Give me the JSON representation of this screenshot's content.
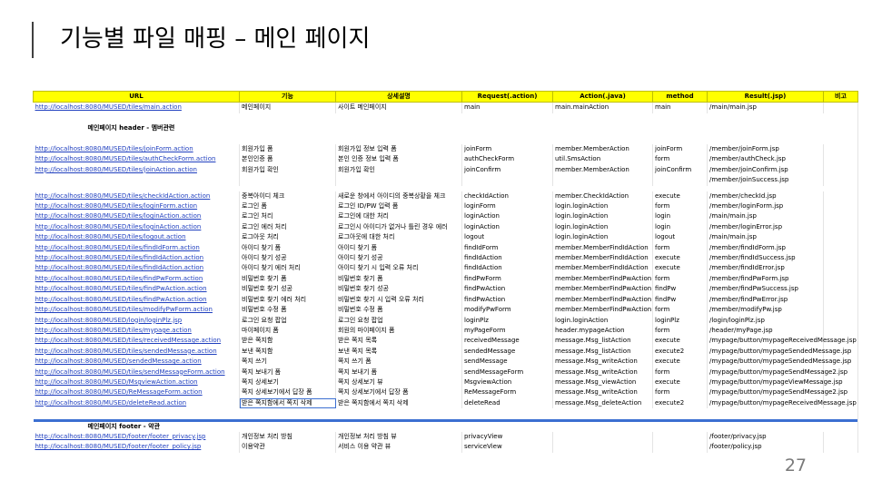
{
  "title": "기능별 파일 매핑 – 메인 페이지",
  "page_number": "27",
  "columns": [
    "URL",
    "기능",
    "상세설명",
    "Request(.action)",
    "Action(.java)",
    "method",
    "Result(.jsp)",
    "비고"
  ],
  "row_main": {
    "url": "http://localhost:8080/MUSED/tiles/main.action",
    "func": "메인페이지",
    "desc": "사이트 메인페이지",
    "req": "main",
    "act": "main.mainAction",
    "method": "main",
    "result": "/main/main.jsp"
  },
  "section_header": "메인페이지 header - 멤버관련",
  "header_rows": [
    {
      "url": "http://localhost:8080/MUSED/tiles/joinForm.action",
      "func": "회원가입 폼",
      "desc": "회원가입 정보 입력 폼",
      "req": "joinForm",
      "act": "member.MemberAction",
      "method": "joinForm",
      "result": "/member/joinForm.jsp"
    },
    {
      "url": "http://localhost:8080/MUSED/tiles/authCheckForm.action",
      "func": "본인인증 폼",
      "desc": "본인 인증 정보 입력 폼",
      "req": "authCheckForm",
      "act": "util.SmsAction",
      "method": "form",
      "result": "/member/authCheck.jsp"
    },
    {
      "url": "http://localhost:8080/MUSED/tiles/joinAction.action",
      "func": "회원가입 확인",
      "desc": "회원가입 확인",
      "req": "joinConfirm",
      "act": "member.MemberAction",
      "method": "joinConfirm",
      "result": "/member/joinConfirm.jsp"
    },
    {
      "url": "",
      "func": "",
      "desc": "",
      "req": "",
      "act": "",
      "method": "",
      "result": "/member/joinSuccess.jsp"
    },
    {
      "url": "http://localhost:8080/MUSED/tiles/checkIdAction.action",
      "func": "중복아이디 체크",
      "desc": "새로운 창에서 아이디의 중복상황을 체크",
      "req": "checkIdAction",
      "act": "member.CheckIdAction",
      "method": "execute",
      "result": "/member/checkId.jsp"
    },
    {
      "url": "http://localhost:8080/MUSED/tiles/loginForm.action",
      "func": "로그인 폼",
      "desc": "로그인 ID/PW 입력 폼",
      "req": "loginForm",
      "act": "login.loginAction",
      "method": "form",
      "result": "/member/loginForm.jsp"
    },
    {
      "url": "http://localhost:8080/MUSED/tiles/loginAction.action",
      "func": "로그인 처리",
      "desc": "로그인에 대한 처리",
      "req": "loginAction",
      "act": "login.loginAction",
      "method": "login",
      "result": "/main/main.jsp"
    },
    {
      "url": "http://localhost:8080/MUSED/tiles/loginAction.action",
      "func": "로그인 에러 처리",
      "desc": "로그인시 아이디가 없거나 틀린 경우 에러",
      "req": "loginAction",
      "act": "login.loginAction",
      "method": "login",
      "result": "/member/loginError.jsp"
    },
    {
      "url": "http://localhost:8080/MUSED/tiles/logout.action",
      "func": "로그아웃 처리",
      "desc": "로그아웃에 대한 처리",
      "req": "logout",
      "act": "login.loginAction",
      "method": "logout",
      "result": "/main/main.jsp"
    },
    {
      "url": "http://localhost:8080/MUSED/tiles/findIdForm.action",
      "func": "아이디 찾기 폼",
      "desc": "아이디 찾기 폼",
      "req": "findIdForm",
      "act": "member.MemberFindIdAction",
      "method": "form",
      "result": "/member/findIdForm.jsp"
    },
    {
      "url": "http://localhost:8080/MUSED/tiles/findIdAction.action",
      "func": "아이디 찾기 성공",
      "desc": "아이디 찾기 성공",
      "req": "findIdAction",
      "act": "member.MemberFindIdAction",
      "method": "execute",
      "result": "/member/findIdSuccess.jsp"
    },
    {
      "url": "http://localhost:8080/MUSED/tiles/findIdAction.action",
      "func": "아이디 찾기 에러 처리",
      "desc": "아이디 찾기 시 입력 오류 처리",
      "req": "findIdAction",
      "act": "member.MemberFindIdAction",
      "method": "execute",
      "result": "/member/findIdError.jsp"
    },
    {
      "url": "http://localhost:8080/MUSED/tiles/findPwForm.action",
      "func": "비밀번호 찾기 폼",
      "desc": "비밀번호 찾기 폼",
      "req": "findPwForm",
      "act": "member.MemberFindPwAction",
      "method": "form",
      "result": "/member/findPwForm.jsp"
    },
    {
      "url": "http://localhost:8080/MUSED/tiles/findPwAction.action",
      "func": "비밀번호 찾기 성공",
      "desc": "비밀번호 찾기 성공",
      "req": "findPwAction",
      "act": "member.MemberFindPwAction",
      "method": "findPw",
      "result": "/member/findPwSuccess.jsp"
    },
    {
      "url": "http://localhost:8080/MUSED/tiles/findPwAction.action",
      "func": "비밀번호 찾기 에러 처리",
      "desc": "비밀번호 찾기 시 입력 오류 처리",
      "req": "findPwAction",
      "act": "member.MemberFindPwAction",
      "method": "findPw",
      "result": "/member/findPwError.jsp"
    },
    {
      "url": "http://localhost:8080/MUSED/tiles/modifyPwForm.action",
      "func": "비밀번호 수정 폼",
      "desc": "비밀번호 수정 폼",
      "req": "modifyPwForm",
      "act": "member.MemberFindPwAction",
      "method": "form",
      "result": "/member/modifyPw.jsp"
    },
    {
      "url": "http://localhost:8080/MUSED/login/loginPlz.jsp",
      "func": "로그인 요청 팝업",
      "desc": "로그인 요청 팝업",
      "req": "loginPlz",
      "act": "login.loginAction",
      "method": "loginPlz",
      "result": "/login/loginPlz.jsp"
    },
    {
      "url": "http://localhost:8080/MUSED/tiles/mypage.action",
      "func": "마이페이지 폼",
      "desc": "회원의 마이페이지 폼",
      "req": "myPageForm",
      "act": "header.mypageAction",
      "method": "form",
      "result": "/header/myPage.jsp"
    },
    {
      "url": "http://localhost:8080/MUSED/tiles/receivedMessage.action",
      "func": "받은 쪽지함",
      "desc": "받은 쪽지 목록",
      "req": "receivedMessage",
      "act": "message.Msg_listAction",
      "method": "execute",
      "result": "/mypage/button/mypageReceivedMessage.jsp"
    },
    {
      "url": "http://localhost:8080/MUSED/tiles/sendedMessage.action",
      "func": "보낸 쪽지함",
      "desc": "보낸 쪽지 목록",
      "req": "sendedMessage",
      "act": "message.Msg_listAction",
      "method": "execute2",
      "result": "/mypage/button/mypageSendedMessage.jsp"
    },
    {
      "url": "http://localhost:8080/MUSED/sendedMessage.action",
      "func": "쪽지 쓰기",
      "desc": "쪽지 쓰기 폼",
      "req": "sendMessage",
      "act": "message.Msg_writeAction",
      "method": "execute",
      "result": "/mypage/button/mypageSendedMessage.jsp"
    },
    {
      "url": "http://localhost:8080/MUSED/tiles/sendMessageForm.action",
      "func": "쪽지 보내기 폼",
      "desc": "쪽지 보내기 폼",
      "req": "sendMessageForm",
      "act": "message.Msg_writeAction",
      "method": "form",
      "result": "/mypage/button/mypageSendMessage2.jsp"
    },
    {
      "url": "http://localhost:8080/MUSED/MsgviewAction.action",
      "func": "쪽지 상세보기",
      "desc": "쪽지 상세보기 뷰",
      "req": "MsgviewAction",
      "act": "message.Msg_viewAction",
      "method": "execute",
      "result": "/mypage/button/mypageViewMessage.jsp"
    },
    {
      "url": "http://localhost:8080/MUSED/ReMessageForm.action",
      "func": "쪽지 상세보기에서 답장 폼",
      "desc": "쪽지 상세보기에서 답장 폼",
      "req": "ReMessageForm",
      "act": "message.Msg_writeAction",
      "method": "form",
      "result": "/mypage/button/mypageSendMessage2.jsp"
    },
    {
      "url": "http://localhost:8080/MUSED/deleteRead.action",
      "func": "받은 쪽지함에서 쪽지 삭제",
      "desc": "받은 쪽지함에서 쪽지 삭제",
      "req": "deleteRead",
      "act": "message.Msg_deleteAction",
      "method": "execute2",
      "result": "/mypage/button/mypageReceivedMessage.jsp"
    }
  ],
  "footer_section_header": "메인페이지 footer - 약관",
  "footer_rows": [
    {
      "url": "http://localhost:8080/MUSED/footer/footer_privacy.jsp",
      "func": "개인정보 처리 방침",
      "desc": "개인정보 처리 방침 뷰",
      "req": "privacyView",
      "act": "",
      "method": "",
      "result": "/footer/privacy.jsp"
    },
    {
      "url": "http://localhost:8080/MUSED/footer/footer_policy.jsp",
      "func": "이용약관",
      "desc": "서비스 이용 약관 뷰",
      "req": "serviceView",
      "act": "",
      "method": "",
      "result": "/footer/policy.jsp"
    }
  ]
}
